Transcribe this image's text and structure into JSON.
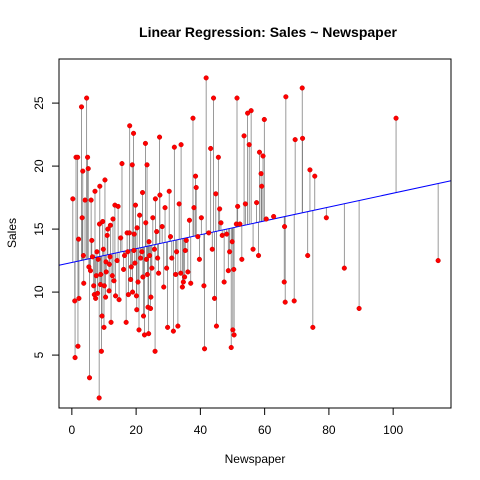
{
  "chart_data": {
    "type": "scatter",
    "title": "Linear Regression: Sales ~ Newspaper",
    "xlabel": "Newspaper",
    "ylabel": "Sales",
    "xlim": [
      -4,
      118
    ],
    "ylim": [
      0.8,
      28.5
    ],
    "x_ticks": [
      0,
      20,
      40,
      60,
      80,
      100
    ],
    "y_ticks": [
      5,
      10,
      15,
      20,
      25
    ],
    "grid": false,
    "legend": "none",
    "colors": {
      "points": "#ff0000",
      "point_edge": "#cc0000",
      "fit_line": "#0000ff",
      "residuals": "#808080"
    },
    "regression_line": {
      "intercept": 12.35,
      "slope": 0.055
    },
    "points": [
      [
        0.3,
        17.4
      ],
      [
        0.9,
        9.3
      ],
      [
        1.0,
        4.8
      ],
      [
        1.3,
        20.7
      ],
      [
        1.8,
        20.7
      ],
      [
        1.9,
        5.7
      ],
      [
        2.1,
        14.2
      ],
      [
        2.2,
        9.5
      ],
      [
        3.0,
        24.7
      ],
      [
        3.2,
        15.9
      ],
      [
        3.4,
        19.6
      ],
      [
        3.6,
        12.9
      ],
      [
        3.7,
        10.7
      ],
      [
        4.1,
        17.3
      ],
      [
        4.6,
        25.4
      ],
      [
        4.9,
        20.7
      ],
      [
        5.1,
        19.8
      ],
      [
        5.3,
        12.0
      ],
      [
        5.5,
        3.2
      ],
      [
        5.8,
        11.7
      ],
      [
        6.0,
        17.3
      ],
      [
        6.2,
        14.1
      ],
      [
        6.4,
        12.8
      ],
      [
        6.8,
        10.5
      ],
      [
        7.0,
        9.8
      ],
      [
        7.2,
        18.0
      ],
      [
        7.4,
        9.5
      ],
      [
        7.6,
        11.3
      ],
      [
        7.8,
        13.2
      ],
      [
        8.0,
        9.9
      ],
      [
        8.2,
        12.6
      ],
      [
        8.5,
        1.6
      ],
      [
        8.6,
        15.4
      ],
      [
        8.7,
        18.4
      ],
      [
        8.9,
        10.6
      ],
      [
        9.0,
        11.4
      ],
      [
        9.2,
        5.3
      ],
      [
        9.4,
        8.1
      ],
      [
        9.6,
        15.6
      ],
      [
        9.8,
        13.4
      ],
      [
        10.0,
        7.2
      ],
      [
        10.1,
        10.5
      ],
      [
        10.3,
        18.9
      ],
      [
        10.5,
        9.6
      ],
      [
        10.6,
        12.4
      ],
      [
        10.7,
        11.6
      ],
      [
        11.0,
        14.5
      ],
      [
        11.2,
        15.0
      ],
      [
        11.6,
        10.1
      ],
      [
        11.7,
        12.2
      ],
      [
        11.9,
        12.8
      ],
      [
        12.0,
        15.3
      ],
      [
        12.2,
        7.6
      ],
      [
        12.6,
        11.3
      ],
      [
        12.8,
        15.8
      ],
      [
        13.1,
        10.9
      ],
      [
        13.4,
        16.9
      ],
      [
        13.6,
        9.7
      ],
      [
        14.1,
        12.5
      ],
      [
        14.4,
        16.8
      ],
      [
        14.7,
        9.4
      ],
      [
        15.2,
        14.3
      ],
      [
        15.6,
        20.2
      ],
      [
        16.1,
        11.8
      ],
      [
        16.4,
        12.9
      ],
      [
        16.9,
        7.6
      ],
      [
        17.2,
        14.7
      ],
      [
        17.4,
        13.2
      ],
      [
        17.6,
        9.8
      ],
      [
        17.9,
        14.7
      ],
      [
        18.0,
        23.2
      ],
      [
        18.3,
        11.0
      ],
      [
        18.5,
        12.0
      ],
      [
        18.8,
        20.1
      ],
      [
        18.9,
        10.0
      ],
      [
        19.2,
        22.6
      ],
      [
        19.3,
        13.3
      ],
      [
        19.4,
        14.6
      ],
      [
        19.6,
        12.3
      ],
      [
        19.8,
        16.9
      ],
      [
        20.1,
        9.7
      ],
      [
        20.2,
        8.6
      ],
      [
        20.3,
        15.1
      ],
      [
        20.6,
        10.8
      ],
      [
        20.9,
        7.0
      ],
      [
        21.1,
        16.1
      ],
      [
        21.4,
        12.7
      ],
      [
        21.8,
        13.2
      ],
      [
        22.0,
        17.9
      ],
      [
        22.1,
        11.2
      ],
      [
        22.3,
        8.1
      ],
      [
        22.6,
        6.6
      ],
      [
        22.9,
        21.8
      ],
      [
        23.0,
        15.5
      ],
      [
        23.2,
        12.6
      ],
      [
        23.4,
        20.1
      ],
      [
        23.5,
        11.4
      ],
      [
        23.7,
        8.8
      ],
      [
        23.9,
        6.7
      ],
      [
        24.0,
        14.0
      ],
      [
        24.2,
        12.9
      ],
      [
        24.5,
        8.7
      ],
      [
        24.6,
        9.6
      ],
      [
        24.9,
        11.9
      ],
      [
        25.2,
        15.9
      ],
      [
        25.7,
        13.4
      ],
      [
        25.9,
        5.3
      ],
      [
        26.0,
        17.4
      ],
      [
        26.4,
        14.8
      ],
      [
        26.7,
        12.7
      ],
      [
        27.0,
        11.5
      ],
      [
        27.3,
        22.3
      ],
      [
        27.4,
        17.7
      ],
      [
        28.1,
        15.2
      ],
      [
        28.6,
        10.4
      ],
      [
        29.0,
        16.7
      ],
      [
        29.5,
        11.9
      ],
      [
        29.8,
        7.2
      ],
      [
        30.3,
        18.0
      ],
      [
        30.7,
        14.4
      ],
      [
        31.1,
        12.7
      ],
      [
        31.6,
        6.9
      ],
      [
        31.9,
        21.5
      ],
      [
        32.3,
        11.4
      ],
      [
        32.6,
        13.2
      ],
      [
        33.0,
        7.3
      ],
      [
        33.4,
        17.0
      ],
      [
        33.9,
        11.5
      ],
      [
        34.0,
        21.7
      ],
      [
        34.4,
        10.4
      ],
      [
        34.7,
        10.8
      ],
      [
        35.1,
        11.2
      ],
      [
        35.3,
        13.3
      ],
      [
        35.6,
        14.1
      ],
      [
        36.1,
        11.6
      ],
      [
        36.6,
        15.7
      ],
      [
        37.0,
        10.7
      ],
      [
        37.7,
        23.8
      ],
      [
        38.0,
        16.7
      ],
      [
        38.5,
        19.2
      ],
      [
        38.7,
        18.3
      ],
      [
        39.2,
        14.4
      ],
      [
        39.7,
        12.6
      ],
      [
        40.3,
        15.9
      ],
      [
        41.1,
        10.5
      ],
      [
        41.3,
        5.5
      ],
      [
        41.8,
        27.0
      ],
      [
        42.6,
        14.7
      ],
      [
        43.2,
        21.4
      ],
      [
        43.7,
        13.4
      ],
      [
        44.1,
        25.4
      ],
      [
        44.4,
        9.5
      ],
      [
        44.8,
        17.8
      ],
      [
        45.0,
        7.3
      ],
      [
        45.6,
        20.7
      ],
      [
        46.0,
        16.6
      ],
      [
        46.4,
        15.5
      ],
      [
        46.8,
        14.5
      ],
      [
        47.4,
        10.8
      ],
      [
        48.2,
        14.6
      ],
      [
        48.7,
        11.7
      ],
      [
        49.1,
        13.2
      ],
      [
        49.6,
        5.6
      ],
      [
        49.9,
        14.0
      ],
      [
        50.1,
        7.0
      ],
      [
        50.4,
        11.8
      ],
      [
        50.5,
        6.6
      ],
      [
        51.2,
        15.4
      ],
      [
        51.4,
        25.4
      ],
      [
        51.6,
        16.8
      ],
      [
        52.3,
        15.4
      ],
      [
        52.9,
        12.6
      ],
      [
        53.6,
        22.4
      ],
      [
        54.0,
        17.0
      ],
      [
        54.7,
        24.2
      ],
      [
        55.2,
        21.7
      ],
      [
        55.8,
        24.4
      ],
      [
        56.4,
        13.4
      ],
      [
        57.5,
        17.1
      ],
      [
        58.1,
        12.9
      ],
      [
        58.4,
        21.1
      ],
      [
        58.9,
        19.4
      ],
      [
        59.1,
        18.4
      ],
      [
        59.5,
        20.8
      ],
      [
        59.9,
        23.7
      ],
      [
        60.5,
        15.8
      ],
      [
        62.8,
        16.0
      ],
      [
        66.1,
        10.8
      ],
      [
        66.2,
        15.2
      ],
      [
        66.4,
        9.2
      ],
      [
        66.6,
        25.5
      ],
      [
        69.2,
        9.3
      ],
      [
        69.5,
        22.1
      ],
      [
        71.7,
        26.2
      ],
      [
        71.8,
        22.2
      ],
      [
        73.4,
        12.9
      ],
      [
        74.1,
        19.7
      ],
      [
        75.0,
        7.2
      ],
      [
        75.6,
        19.2
      ],
      [
        79.2,
        15.9
      ],
      [
        84.8,
        11.9
      ],
      [
        89.4,
        8.7
      ],
      [
        100.9,
        23.8
      ],
      [
        114.0,
        12.5
      ]
    ]
  }
}
